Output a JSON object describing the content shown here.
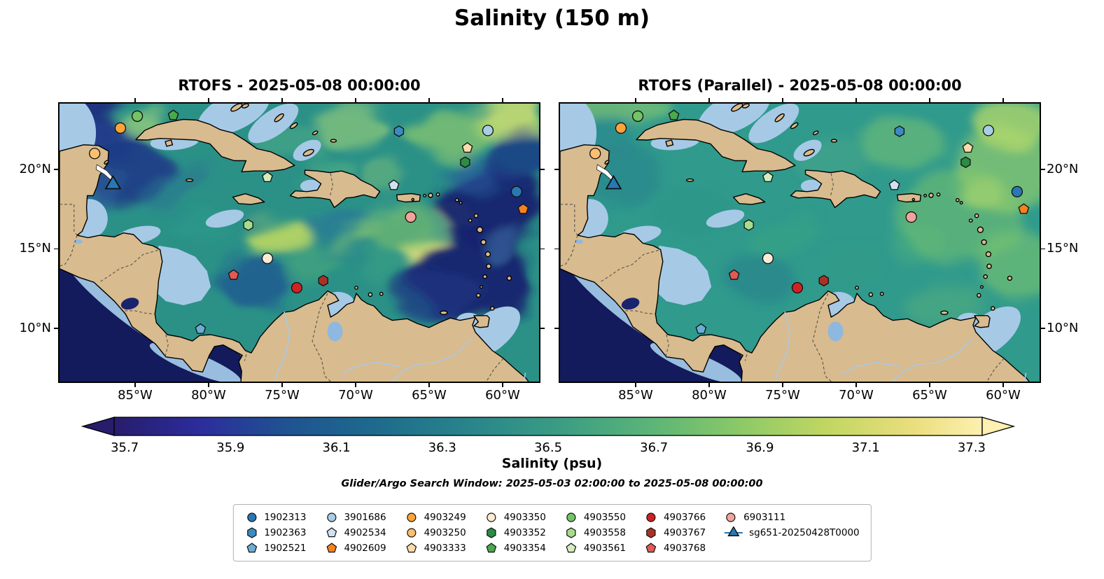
{
  "title": "Salinity (150 m)",
  "chart_data": {
    "type": "map",
    "panels": [
      {
        "title": "RTOFS - 2025-05-08 00:00:00"
      },
      {
        "title": "RTOFS (Parallel) - 2025-05-08 00:00:00"
      }
    ],
    "axes": {
      "x_ticks": [
        "85°W",
        "80°W",
        "75°W",
        "70°W",
        "65°W",
        "60°W"
      ],
      "x_tick_lonW": [
        85,
        80,
        75,
        70,
        65,
        60
      ],
      "y_ticks": [
        "10°N",
        "15°N",
        "20°N"
      ],
      "y_tick_lat": [
        10,
        15,
        20
      ],
      "extent_lonW": [
        90.1,
        57.5
      ],
      "extent_lat": [
        6.7,
        24.1
      ]
    },
    "colorbar": {
      "label": "Salinity (psu)",
      "ticks": [
        35.7,
        35.9,
        36.1,
        36.3,
        36.5,
        36.7,
        36.9,
        37.1,
        37.3
      ],
      "range": [
        35.68,
        37.32
      ],
      "extend": "both",
      "colormap": [
        {
          "pos": 0.0,
          "color": "#271d6c"
        },
        {
          "pos": 0.1,
          "color": "#2c2d9c"
        },
        {
          "pos": 0.2,
          "color": "#1f5391"
        },
        {
          "pos": 0.3,
          "color": "#1e6a8d"
        },
        {
          "pos": 0.42,
          "color": "#2a878a"
        },
        {
          "pos": 0.52,
          "color": "#3c9e83"
        },
        {
          "pos": 0.62,
          "color": "#5cb577"
        },
        {
          "pos": 0.72,
          "color": "#8bc967"
        },
        {
          "pos": 0.82,
          "color": "#c1d662"
        },
        {
          "pos": 0.92,
          "color": "#e9de7d"
        },
        {
          "pos": 1.0,
          "color": "#fdf0b0"
        }
      ]
    },
    "search_window": "Glider/Argo Search Window: 2025-05-03 02:00:00 to 2025-05-08 00:00:00",
    "floats": [
      {
        "id": "1902313",
        "shape": "circle",
        "color": "#2878b5",
        "lonW": 59.05,
        "lat": 18.6
      },
      {
        "id": "1902363",
        "shape": "hexagon",
        "color": "#3b8bc2",
        "lonW": 67.05,
        "lat": 22.4
      },
      {
        "id": "1902521",
        "shape": "pentagon",
        "color": "#6aaed6",
        "lonW": 80.55,
        "lat": 9.95
      },
      {
        "id": "3901686",
        "shape": "circle",
        "color": "#a8cee5",
        "lonW": 61.0,
        "lat": 22.45
      },
      {
        "id": "4902534",
        "shape": "pentagon",
        "color": "#cfe1f2",
        "lonW": 67.4,
        "lat": 19.0
      },
      {
        "id": "4902609",
        "shape": "pentagon",
        "color": "#f5821f",
        "lonW": 58.6,
        "lat": 17.5
      },
      {
        "id": "4903249",
        "shape": "circle",
        "color": "#faa43a",
        "lonW": 86.0,
        "lat": 22.6
      },
      {
        "id": "4903250",
        "shape": "circle",
        "color": "#fdbf6f",
        "lonW": 87.75,
        "lat": 21.0
      },
      {
        "id": "4903333",
        "shape": "pentagon",
        "color": "#fddcab",
        "lonW": 62.4,
        "lat": 21.35
      },
      {
        "id": "4903350",
        "shape": "circle",
        "color": "#fcebd5",
        "lonW": 76.0,
        "lat": 14.4
      },
      {
        "id": "4903352",
        "shape": "hexagon",
        "color": "#2c8b44",
        "lonW": 62.55,
        "lat": 20.45
      },
      {
        "id": "4903354",
        "shape": "pentagon",
        "color": "#4aa94e",
        "lonW": 82.4,
        "lat": 23.4
      },
      {
        "id": "4903550",
        "shape": "circle",
        "color": "#74c465",
        "lonW": 84.85,
        "lat": 23.35
      },
      {
        "id": "4903558",
        "shape": "hexagon",
        "color": "#a8dc8d",
        "lonW": 77.3,
        "lat": 16.5
      },
      {
        "id": "4903561",
        "shape": "pentagon",
        "color": "#d4edbe",
        "lonW": 76.0,
        "lat": 19.5
      },
      {
        "id": "4903766",
        "shape": "circle",
        "color": "#cf2222",
        "lonW": 74.0,
        "lat": 12.55
      },
      {
        "id": "4903767",
        "shape": "hexagon",
        "color": "#a93226",
        "lonW": 72.2,
        "lat": 13.0
      },
      {
        "id": "4903768",
        "shape": "pentagon",
        "color": "#e25a52",
        "lonW": 78.3,
        "lat": 13.35
      },
      {
        "id": "6903111",
        "shape": "circle",
        "color": "#f2a49c",
        "lonW": 66.25,
        "lat": 17.0
      }
    ],
    "glider": {
      "id": "sg651-20250428T0000",
      "shape": "triangle",
      "color": "#2878b5",
      "lonW": 86.5,
      "lat": 19.05
    }
  }
}
